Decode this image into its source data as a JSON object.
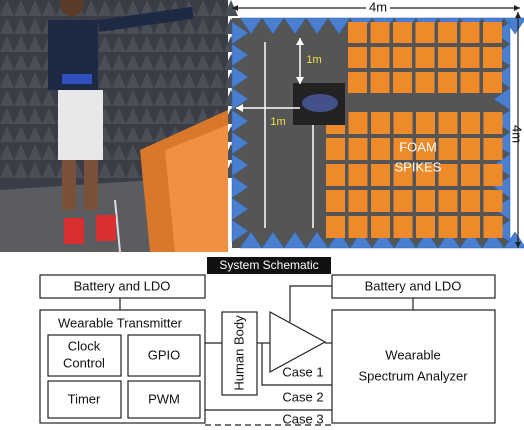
{
  "floor_plan": {
    "width_label": "4m",
    "height_label": "4m",
    "vertical_distance": "1m",
    "horizontal_distance": "1m",
    "foam_label": [
      "FOAM",
      "SPIKES"
    ]
  },
  "schematic": {
    "title": "System Schematic",
    "left_battery": "Battery and LDO",
    "transmitter": {
      "title": "Wearable Transmitter",
      "blocks": [
        [
          "Clock",
          "Control"
        ],
        "GPIO",
        "Timer",
        "PWM"
      ]
    },
    "human_body": "Human Body",
    "right_battery": "Battery and LDO",
    "analyzer": [
      "Wearable",
      "Spectrum Analyzer"
    ],
    "cases": [
      "Case 1",
      "Case 2",
      "Case 3"
    ]
  }
}
